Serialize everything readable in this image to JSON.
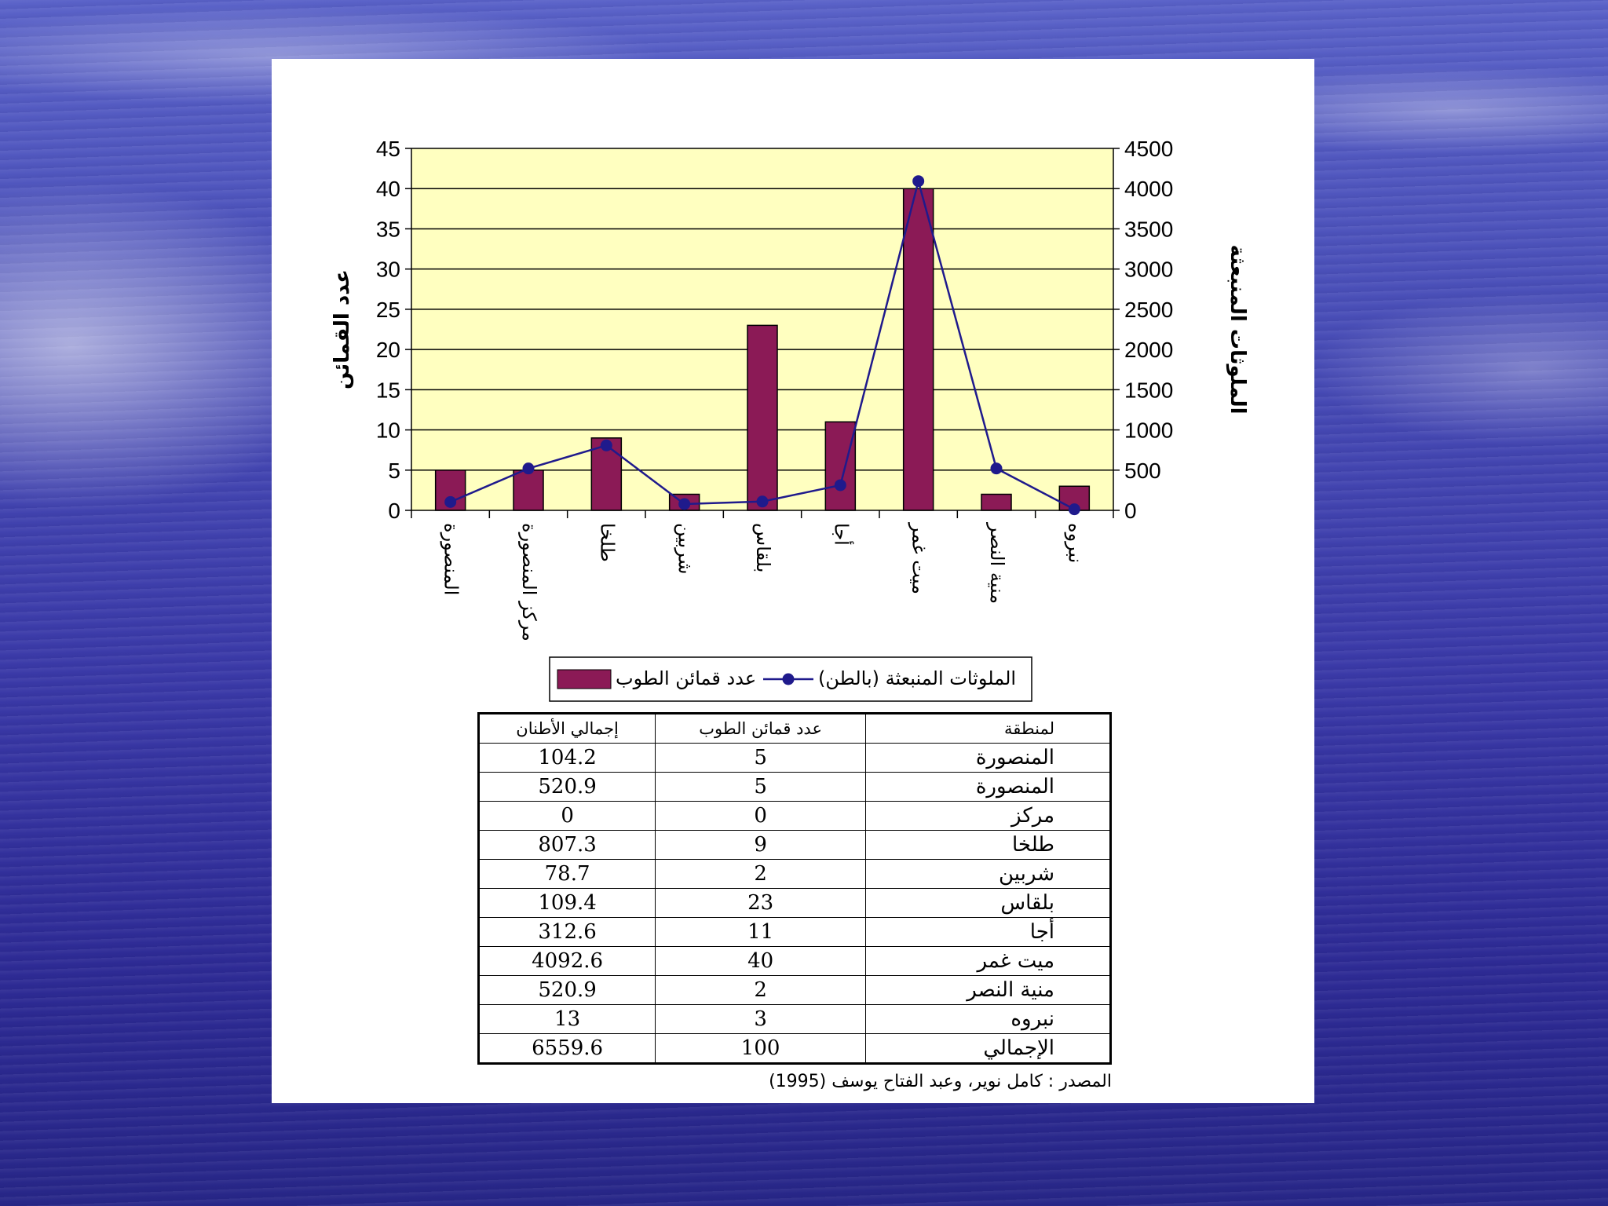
{
  "chart_data": {
    "type": "bar",
    "categories": [
      "المنصورة",
      "مركز المنصورة",
      "طلخا",
      "شربين",
      "بلقاس",
      "أجا",
      "ميت غمر",
      "منية النصر",
      "نبروه"
    ],
    "series": [
      {
        "name": "عدد قمائن الطوب",
        "type": "bar",
        "axis": "left",
        "color": "#8b1a56",
        "values": [
          5,
          5,
          9,
          2,
          23,
          11,
          40,
          2,
          3
        ]
      },
      {
        "name": "الملوثات المنبعثة (بالطن)",
        "type": "line",
        "axis": "right",
        "color": "#1f1a8c",
        "values": [
          104.2,
          520.9,
          807.3,
          78.7,
          109.4,
          312.6,
          4092.6,
          520.9,
          13
        ]
      }
    ],
    "ylabel": "عدد القمائن",
    "y2label": "الملوثات المنبعثة",
    "ylim": [
      0,
      45
    ],
    "y2lim": [
      0,
      4500
    ],
    "yticks": [
      0,
      5,
      10,
      15,
      20,
      25,
      30,
      35,
      40,
      45
    ],
    "y2ticks": [
      0,
      500,
      1000,
      1500,
      2000,
      2500,
      3000,
      3500,
      4000,
      4500
    ],
    "grid": true,
    "plot_background": "#ffffc0",
    "legend_position": "bottom"
  },
  "table": {
    "headers": [
      "لمنطقة",
      "عدد قمائن الطوب",
      "إجمالي الأطنان"
    ],
    "rows": [
      [
        "المنصورة",
        "5",
        "104.2"
      ],
      [
        "المنصورة",
        "5",
        "520.9"
      ],
      [
        "مركز",
        "0",
        "0"
      ],
      [
        "طلخا",
        "9",
        "807.3"
      ],
      [
        "شربين",
        "2",
        "78.7"
      ],
      [
        "بلقاس",
        "23",
        "109.4"
      ],
      [
        "أجا",
        "11",
        "312.6"
      ],
      [
        "ميت غمر",
        "40",
        "4092.6"
      ],
      [
        "منية النصر",
        "2",
        "520.9"
      ],
      [
        "نبروه",
        "3",
        "13"
      ],
      [
        "الإجمالي",
        "100",
        "6559.6"
      ]
    ]
  },
  "source_note": "المصدر : كامل نوير، وعبد الفتاح يوسف (1995)"
}
